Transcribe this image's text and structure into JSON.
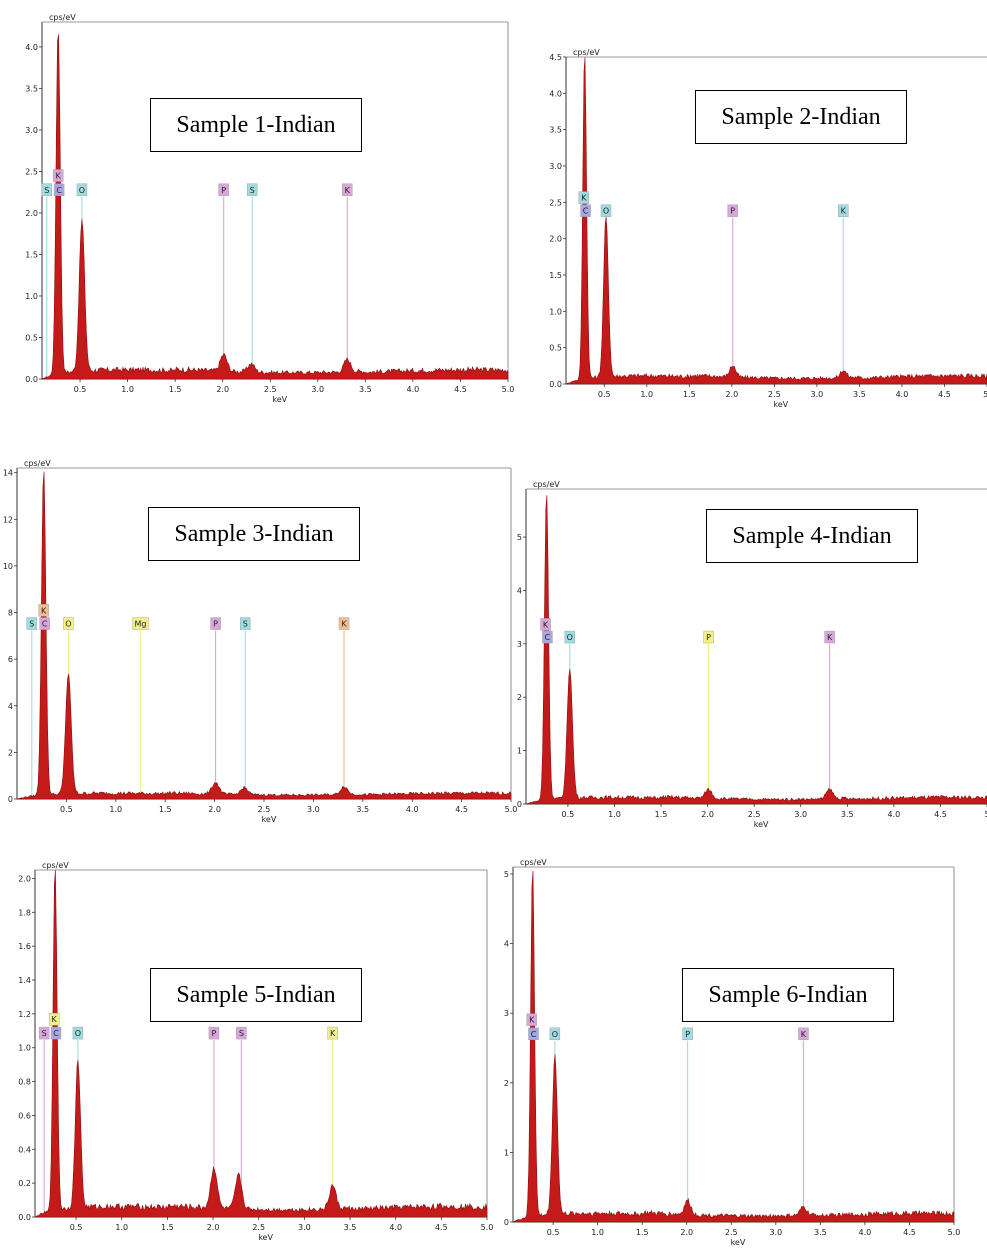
{
  "chart_data": [
    {
      "type": "area",
      "title": "Sample 1-Indian",
      "ylabel": "cps/eV",
      "xlabel": "keV",
      "xlim": [
        0.1,
        5.0
      ],
      "ylim": [
        0,
        4.3
      ],
      "xticks": [
        "0.5",
        "1.0",
        "1.5",
        "2.0",
        "2.5",
        "3.0",
        "3.5",
        "4.0",
        "4.5",
        "5.0"
      ],
      "yticks": [
        "0.0",
        "0.5",
        "1.0",
        "1.5",
        "2.0",
        "2.5",
        "3.0",
        "3.5",
        "4.0"
      ],
      "peaks": [
        {
          "x": 0.27,
          "y": 4.2
        },
        {
          "x": 0.52,
          "y": 1.82
        },
        {
          "x": 2.01,
          "y": 0.2
        },
        {
          "x": 2.3,
          "y": 0.1
        },
        {
          "x": 3.31,
          "y": 0.15
        }
      ],
      "baseline": 0.09,
      "element_labels": [
        {
          "label": "S",
          "x": 0.15,
          "row": 0,
          "color": "#9fdbe0"
        },
        {
          "label": "K",
          "x": 0.27,
          "row": 1,
          "color": "#d9a6da"
        },
        {
          "label": "C",
          "x": 0.28,
          "row": 0,
          "color": "#a9a6e6"
        },
        {
          "label": "O",
          "x": 0.52,
          "row": 0,
          "color": "#9fdbe0"
        },
        {
          "label": "P",
          "x": 2.01,
          "row": 0,
          "color": "#d9a6da"
        },
        {
          "label": "S",
          "x": 2.31,
          "row": 0,
          "color": "#9fdbe0"
        },
        {
          "label": "K",
          "x": 3.31,
          "row": 0,
          "color": "#d9a6da"
        }
      ]
    },
    {
      "type": "area",
      "title": "Sample 2-Indian",
      "ylabel": "cps/eV",
      "xlabel": "keV",
      "xlim": [
        0.05,
        5.0
      ],
      "ylim": [
        0,
        4.5
      ],
      "xticks": [
        "0.5",
        "1.0",
        "1.5",
        "2.0",
        "2.5",
        "3.0",
        "3.5",
        "4.0",
        "4.5",
        "5."
      ],
      "yticks": [
        "0.0",
        "0.5",
        "1.0",
        "1.5",
        "2.0",
        "2.5",
        "3.0",
        "3.5",
        "4.0",
        "4.5"
      ],
      "peaks": [
        {
          "x": 0.27,
          "y": 4.5
        },
        {
          "x": 0.52,
          "y": 2.2
        },
        {
          "x": 2.01,
          "y": 0.16
        },
        {
          "x": 3.31,
          "y": 0.1
        }
      ],
      "baseline": 0.09,
      "element_labels": [
        {
          "label": "K",
          "x": 0.26,
          "row": 1,
          "color": "#9fdbe0"
        },
        {
          "label": "C",
          "x": 0.28,
          "row": 0,
          "color": "#a9a6e6"
        },
        {
          "label": "O",
          "x": 0.52,
          "row": 0,
          "color": "#9fdbe0"
        },
        {
          "label": "P",
          "x": 2.01,
          "row": 0,
          "color": "#d9a6da"
        },
        {
          "label": "K",
          "x": 3.31,
          "row": 0,
          "color": "#9fdbe0"
        }
      ]
    },
    {
      "type": "area",
      "title": "Sample 3-Indian",
      "ylabel": "cps/eV",
      "xlabel": "keV",
      "xlim": [
        0.0,
        5.0
      ],
      "ylim": [
        0,
        14.2
      ],
      "xticks": [
        "0.5",
        "1.0",
        "1.5",
        "2.0",
        "2.5",
        "3.0",
        "3.5",
        "4.0",
        "4.5",
        "5.0"
      ],
      "yticks": [
        "0",
        "2",
        "4",
        "6",
        "8",
        "10",
        "12",
        "14"
      ],
      "peaks": [
        {
          "x": 0.27,
          "y": 14.1
        },
        {
          "x": 0.52,
          "y": 5.2
        },
        {
          "x": 2.01,
          "y": 0.5
        },
        {
          "x": 2.3,
          "y": 0.3
        },
        {
          "x": 3.31,
          "y": 0.35
        }
      ],
      "baseline": 0.2,
      "element_labels": [
        {
          "label": "S",
          "x": 0.15,
          "row": 0,
          "color": "#9fdbe0"
        },
        {
          "label": "K",
          "x": 0.27,
          "row": 1,
          "color": "#f2be90"
        },
        {
          "label": "C",
          "x": 0.28,
          "row": 0,
          "color": "#d9a6da"
        },
        {
          "label": "O",
          "x": 0.52,
          "row": 0,
          "color": "#f2f08a"
        },
        {
          "label": "Mg",
          "x": 1.25,
          "row": 0,
          "color": "#f2f08a"
        },
        {
          "label": "P",
          "x": 2.01,
          "row": 0,
          "color": "#d9a6da"
        },
        {
          "label": "S",
          "x": 2.31,
          "row": 0,
          "color": "#9fdbe0"
        },
        {
          "label": "K",
          "x": 3.31,
          "row": 0,
          "color": "#f2be90"
        }
      ]
    },
    {
      "type": "area",
      "title": "Sample 4-Indian",
      "ylabel": "cps/eV",
      "xlabel": "keV",
      "xlim": [
        0.05,
        5.0
      ],
      "ylim": [
        0,
        5.9
      ],
      "xticks": [
        "0.5",
        "1.0",
        "1.5",
        "2.0",
        "2.5",
        "3.0",
        "3.5",
        "4.0",
        "4.5",
        "5"
      ],
      "yticks": [
        "0",
        "1",
        "2",
        "3",
        "4",
        "5"
      ],
      "peaks": [
        {
          "x": 0.27,
          "y": 5.8
        },
        {
          "x": 0.52,
          "y": 2.45
        },
        {
          "x": 2.01,
          "y": 0.17
        },
        {
          "x": 3.31,
          "y": 0.18
        }
      ],
      "baseline": 0.1,
      "element_labels": [
        {
          "label": "K",
          "x": 0.26,
          "row": 1,
          "color": "#d9a6da"
        },
        {
          "label": "C",
          "x": 0.28,
          "row": 0,
          "color": "#a9a6e6"
        },
        {
          "label": "O",
          "x": 0.52,
          "row": 0,
          "color": "#9fdbe0"
        },
        {
          "label": "P",
          "x": 2.01,
          "row": 0,
          "color": "#f2f08a"
        },
        {
          "label": "K",
          "x": 3.31,
          "row": 0,
          "color": "#d9a6da"
        }
      ]
    },
    {
      "type": "area",
      "title": "Sample 5-Indian",
      "ylabel": "cps/eV",
      "xlabel": "keV",
      "xlim": [
        0.05,
        5.0
      ],
      "ylim": [
        0,
        2.05
      ],
      "xticks": [
        "0.5",
        "1.0",
        "1.5",
        "2.0",
        "2.5",
        "3.0",
        "3.5",
        "4.0",
        "4.5",
        "5.0"
      ],
      "yticks": [
        "0.0",
        "0.2",
        "0.4",
        "0.6",
        "0.8",
        "1.0",
        "1.2",
        "1.4",
        "1.6",
        "1.8",
        "2.0"
      ],
      "peaks": [
        {
          "x": 0.27,
          "y": 2.05
        },
        {
          "x": 0.52,
          "y": 0.88
        },
        {
          "x": 2.01,
          "y": 0.24
        },
        {
          "x": 2.28,
          "y": 0.2
        },
        {
          "x": 3.31,
          "y": 0.14
        }
      ],
      "baseline": 0.05,
      "element_labels": [
        {
          "label": "S",
          "x": 0.15,
          "row": 0,
          "color": "#d9a6da"
        },
        {
          "label": "K",
          "x": 0.26,
          "row": 1,
          "color": "#f2f08a"
        },
        {
          "label": "C",
          "x": 0.28,
          "row": 0,
          "color": "#a9a6e6"
        },
        {
          "label": "O",
          "x": 0.52,
          "row": 0,
          "color": "#9fdbe0"
        },
        {
          "label": "P",
          "x": 2.01,
          "row": 0,
          "color": "#d9a6da"
        },
        {
          "label": "S",
          "x": 2.31,
          "row": 0,
          "color": "#d9a6da"
        },
        {
          "label": "K",
          "x": 3.31,
          "row": 0,
          "color": "#f2f08a"
        }
      ]
    },
    {
      "type": "area",
      "title": "Sample 6-Indian",
      "ylabel": "cps/eV",
      "xlabel": "keV",
      "xlim": [
        0.05,
        5.0
      ],
      "ylim": [
        0,
        5.1
      ],
      "xticks": [
        "0.5",
        "1.0",
        "1.5",
        "2.0",
        "2.5",
        "3.0",
        "3.5",
        "4.0",
        "4.5",
        "5.0"
      ],
      "yticks": [
        "0",
        "1",
        "2",
        "3",
        "4",
        "5"
      ],
      "peaks": [
        {
          "x": 0.27,
          "y": 5.05
        },
        {
          "x": 0.52,
          "y": 2.3
        },
        {
          "x": 2.01,
          "y": 0.2
        },
        {
          "x": 3.31,
          "y": 0.12
        }
      ],
      "baseline": 0.1,
      "element_labels": [
        {
          "label": "K",
          "x": 0.26,
          "row": 1,
          "color": "#d9a6da"
        },
        {
          "label": "C",
          "x": 0.28,
          "row": 0,
          "color": "#a9a6e6"
        },
        {
          "label": "O",
          "x": 0.52,
          "row": 0,
          "color": "#9fdbe0"
        },
        {
          "label": "P",
          "x": 2.01,
          "row": 0,
          "color": "#9fdbe0"
        },
        {
          "label": "K",
          "x": 3.31,
          "row": 0,
          "color": "#d9a6da"
        }
      ]
    }
  ],
  "colors": {
    "spectrum_fill": "#c41a1a",
    "spectrum_edge": "#8e0d0d",
    "axis": "#333333"
  }
}
